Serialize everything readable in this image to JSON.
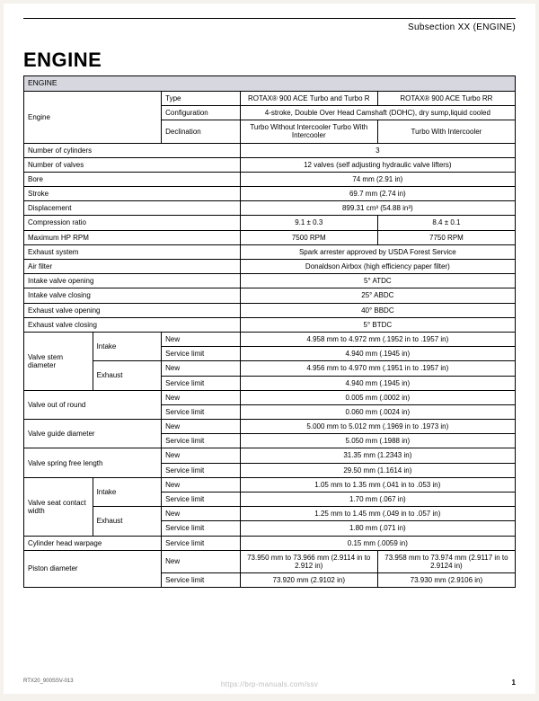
{
  "header": {
    "subsection": "Subsection XX (ENGINE)",
    "title": "ENGINE"
  },
  "table": {
    "section_header": "ENGINE",
    "rows": {
      "engine_label": "Engine",
      "type_label": "Type",
      "type_val1": "ROTAX® 900 ACE Turbo and Turbo R",
      "type_val2": "ROTAX® 900 ACE Turbo RR",
      "config_label": "Configuration",
      "config_val": "4-stroke, Double Over Head Camshaft (DOHC), dry sump,liquid cooled",
      "decl_label": "Declination",
      "decl_val1": "Turbo Without Intercooler Turbo With Intercooler",
      "decl_val2": "Turbo With Intercooler",
      "num_cyl_label": "Number of cylinders",
      "num_cyl_val": "3",
      "num_valves_label": "Number of valves",
      "num_valves_val": "12 valves (self adjusting hydraulic valve lifters)",
      "bore_label": "Bore",
      "bore_val": "74 mm (2.91 in)",
      "stroke_label": "Stroke",
      "stroke_val": "69.7 mm (2.74 in)",
      "disp_label": "Displacement",
      "disp_val": "899.31 cm³ (54.88 in³)",
      "compr_label": "Compression ratio",
      "compr_val1": "9.1 ± 0.3",
      "compr_val2": "8.4 ± 0.1",
      "maxhp_label": "Maximum HP RPM",
      "maxhp_val1": "7500 RPM",
      "maxhp_val2": "7750 RPM",
      "exhaust_sys_label": "Exhaust system",
      "exhaust_sys_val": "Spark arrester approved by USDA Forest Service",
      "airfilter_label": "Air filter",
      "airfilter_val": "Donaldson Airbox (high efficiency paper filter)",
      "ivo_label": "Intake valve opening",
      "ivo_val": "5° ATDC",
      "ivc_label": "Intake valve closing",
      "ivc_val": "25° ABDC",
      "evo_label": "Exhaust valve opening",
      "evo_val": "40° BBDC",
      "evc_label": "Exhaust valve closing",
      "evc_val": "5° BTDC",
      "vsd_label": "Valve stem diameter",
      "intake_label": "Intake",
      "exhaust_label": "Exhaust",
      "new_label": "New",
      "svc_label": "Service limit",
      "vsd_in_new": "4.958 mm to 4.972 mm (.1952 in to .1957 in)",
      "vsd_in_svc": "4.940 mm (.1945 in)",
      "vsd_ex_new": "4.956 mm to 4.970 mm (.1951 in to .1957 in)",
      "vsd_ex_svc": "4.940 mm (.1945 in)",
      "voor_label": "Valve out of round",
      "voor_new": "0.005 mm (.0002 in)",
      "voor_svc": "0.060 mm (.0024 in)",
      "vgd_label": "Valve guide diameter",
      "vgd_new": "5.000 mm to 5.012 mm (.1969 in to .1973 in)",
      "vgd_svc": "5.050 mm (.1988 in)",
      "vsfl_label": "Valve spring free length",
      "vsfl_new": "31.35 mm (1.2343 in)",
      "vsfl_svc": "29.50 mm (1.1614 in)",
      "vscw_label": "Valve seat contact width",
      "vscw_in_new": "1.05 mm to 1.35 mm (.041 in to .053 in)",
      "vscw_in_svc": "1.70 mm (.067 in)",
      "vscw_ex_new": "1.25 mm to 1.45 mm (.049 in to .057 in)",
      "vscw_ex_svc": "1.80 mm (.071 in)",
      "chw_label": "Cylinder head warpage",
      "chw_svc": "0.15 mm (.0059 in)",
      "pd_label": "Piston diameter",
      "pd_new1": "73.950 mm to 73.966 mm (2.9114 in to 2.912 in)",
      "pd_new2": "73.958 mm to 73.974 mm (2.9117 in to 2.9124 in)",
      "pd_svc1": "73.920 mm (2.9102 in)",
      "pd_svc2": "73.930 mm (2.9106 in)"
    }
  },
  "footer": {
    "doc_code": "RTX20_900SSV-013",
    "page_num": "1",
    "watermark": "https://brp-manuals.com/ssv"
  },
  "style": {
    "page_bg": "#ffffff",
    "outer_bg": "#f5f2ed",
    "header_row_bg": "#d7d7df",
    "border_color": "#000000",
    "text_color": "#000000"
  }
}
